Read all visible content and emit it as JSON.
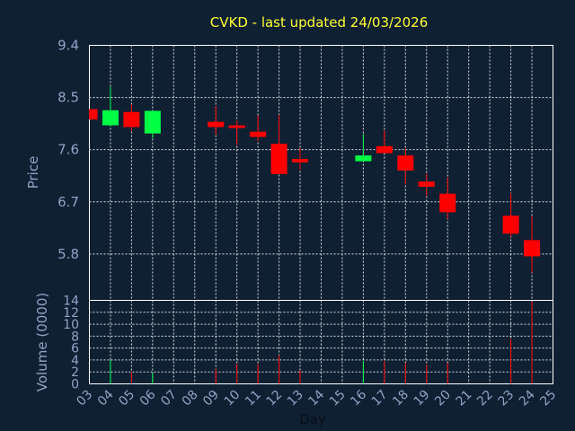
{
  "chart_data": {
    "type": "candlestick",
    "title": "CVKD - last updated 24/03/2026",
    "xlabel": "Day",
    "price_panel": {
      "ylabel": "Price",
      "ylim": [
        5.0,
        9.4
      ],
      "y_ticks": [
        "9.4",
        "8.5",
        "7.6",
        "6.7",
        "5.8"
      ],
      "y_tick_values": [
        9.4,
        8.5,
        7.6,
        6.7,
        5.8
      ]
    },
    "volume_panel": {
      "ylabel": "Volume (0000)",
      "ylim": [
        0,
        14
      ],
      "y_ticks": [
        "14",
        "12",
        "10",
        "8",
        "6",
        "4",
        "2",
        "0"
      ],
      "y_tick_values": [
        14,
        12,
        10,
        8,
        6,
        4,
        2,
        0
      ]
    },
    "x_ticks": [
      "03",
      "04",
      "05",
      "06",
      "07",
      "08",
      "09",
      "10",
      "11",
      "12",
      "13",
      "14",
      "15",
      "16",
      "17",
      "18",
      "19",
      "20",
      "21",
      "22",
      "23",
      "24",
      "25"
    ],
    "colors": {
      "up": "#00ff44",
      "down": "#ff0000",
      "background": "#0f2033",
      "title": "#ffff33",
      "axis_text": "#8ea4c4"
    },
    "candles": [
      {
        "day": "03",
        "open": 8.3,
        "close": 8.12,
        "high": 8.3,
        "low": 8.12,
        "volume": 0
      },
      {
        "day": "04",
        "open": 8.02,
        "close": 8.28,
        "high": 8.68,
        "low": 8.0,
        "volume": 4.0
      },
      {
        "day": "05",
        "open": 8.25,
        "close": 7.99,
        "high": 8.38,
        "low": 7.92,
        "volume": 2.0
      },
      {
        "day": "06",
        "open": 7.88,
        "close": 8.27,
        "high": 8.27,
        "low": 7.8,
        "volume": 1.8
      },
      {
        "day": "09",
        "open": 8.08,
        "close": 7.99,
        "high": 8.35,
        "low": 7.86,
        "volume": 2.5
      },
      {
        "day": "10",
        "open": 8.02,
        "close": 7.99,
        "high": 8.1,
        "low": 7.68,
        "volume": 3.3
      },
      {
        "day": "11",
        "open": 7.91,
        "close": 7.82,
        "high": 8.19,
        "low": 7.75,
        "volume": 3.3
      },
      {
        "day": "12",
        "open": 7.7,
        "close": 7.18,
        "high": 8.2,
        "low": 7.18,
        "volume": 4.8
      },
      {
        "day": "13",
        "open": 7.44,
        "close": 7.38,
        "high": 7.63,
        "low": 7.25,
        "volume": 2.3
      },
      {
        "day": "16",
        "open": 7.4,
        "close": 7.5,
        "high": 7.87,
        "low": 7.4,
        "volume": 3.8
      },
      {
        "day": "17",
        "open": 7.66,
        "close": 7.54,
        "high": 7.93,
        "low": 7.54,
        "volume": 3.8
      },
      {
        "day": "18",
        "open": 7.5,
        "close": 7.24,
        "high": 7.62,
        "low": 7.0,
        "volume": 3.5
      },
      {
        "day": "19",
        "open": 7.05,
        "close": 6.96,
        "high": 7.18,
        "low": 6.8,
        "volume": 3.2
      },
      {
        "day": "20",
        "open": 6.84,
        "close": 6.52,
        "high": 7.12,
        "low": 6.4,
        "volume": 3.5
      },
      {
        "day": "23",
        "open": 6.46,
        "close": 6.15,
        "high": 6.85,
        "low": 6.1,
        "volume": 7.5
      },
      {
        "day": "24",
        "open": 6.04,
        "close": 5.76,
        "high": 6.45,
        "low": 5.48,
        "volume": 13.8
      }
    ]
  }
}
